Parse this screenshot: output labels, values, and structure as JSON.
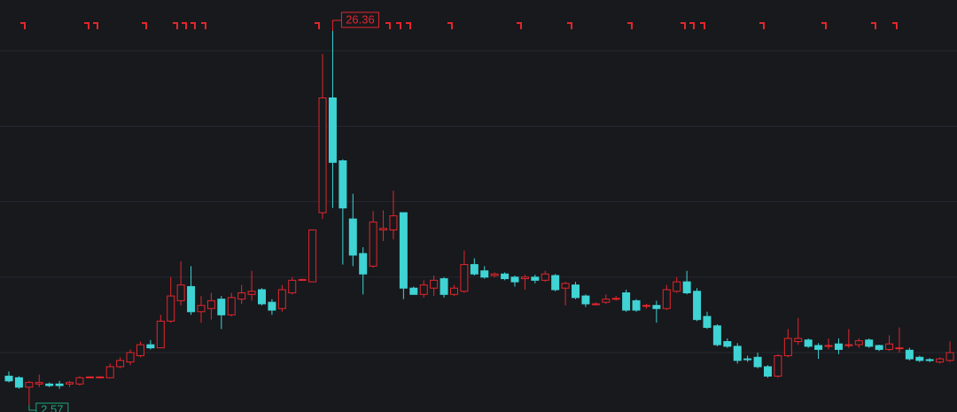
{
  "chart_data": {
    "type": "candlestick",
    "up_color": "#e3262c",
    "down_color": "#3fd3d4",
    "grid": true,
    "ylim": [
      2.12,
      28.33
    ],
    "ygrid": [
      5.9,
      10.7,
      15.5,
      20.3,
      25.1
    ],
    "annotations": {
      "high": 26.36,
      "low": 2.57
    },
    "open": [
      4.4,
      4.3,
      3.7,
      3.9,
      3.9,
      3.9,
      3.9,
      3.9,
      4.3,
      4.3,
      4.3,
      5.0,
      5.3,
      5.7,
      6.4,
      6.2,
      7.9,
      9.2,
      10.1,
      8.5,
      8.7,
      9.3,
      8.3,
      9.3,
      9.6,
      9.9,
      9.1,
      8.7,
      9.7,
      10.5,
      10.4,
      14.8,
      22.1,
      18.1,
      14.4,
      12.2,
      11.4,
      13.7,
      13.7,
      14.8,
      10.0,
      9.6,
      10.0,
      10.6,
      9.6,
      9.8,
      11.5,
      11.1,
      10.8,
      10.9,
      10.7,
      10.6,
      10.7,
      10.5,
      10.8,
      10.0,
      10.2,
      9.5,
      8.95,
      9.1,
      9.3,
      9.7,
      9.2,
      8.85,
      8.9,
      8.7,
      9.8,
      10.4,
      9.8,
      8.2,
      7.6,
      6.6,
      6.3,
      5.5,
      5.6,
      5.0,
      4.4,
      5.7,
      6.6,
      6.7,
      6.35,
      6.3,
      6.45,
      6.35,
      6.4,
      6.7,
      6.35,
      6.1,
      6.15,
      6.05,
      5.6,
      5.45,
      5.3,
      5.4
    ],
    "high": [
      4.7,
      4.4,
      4.1,
      4.5,
      4.0,
      4.1,
      4.1,
      4.4,
      4.4,
      4.4,
      5.2,
      5.6,
      6.1,
      6.6,
      6.7,
      8.3,
      10.7,
      11.7,
      11.4,
      9.5,
      9.7,
      9.5,
      9.7,
      10.2,
      11.1,
      10.0,
      9.3,
      10.2,
      10.7,
      10.6,
      13.7,
      24.9,
      26.36,
      18.2,
      16.0,
      12.6,
      14.9,
      14.95,
      16.2,
      14.8,
      10.1,
      10.5,
      10.8,
      10.7,
      10.2,
      12.4,
      11.9,
      11.4,
      11.0,
      11.0,
      10.8,
      10.86,
      10.86,
      11.1,
      10.9,
      10.4,
      10.4,
      9.6,
      9.1,
      9.6,
      9.5,
      9.9,
      9.3,
      9.0,
      9.2,
      10.2,
      10.7,
      11.1,
      10.0,
      8.5,
      7.7,
      6.8,
      6.5,
      5.7,
      5.9,
      5.1,
      5.8,
      7.4,
      8.1,
      6.8,
      6.5,
      6.8,
      6.8,
      7.4,
      6.8,
      6.8,
      6.4,
      7.0,
      7.5,
      6.2,
      5.7,
      5.55,
      5.6,
      6.6
    ],
    "low": [
      4.0,
      3.6,
      2.57,
      3.7,
      3.7,
      3.6,
      3.7,
      3.8,
      4.3,
      4.3,
      4.3,
      4.9,
      5.1,
      5.6,
      6.1,
      6.2,
      7.8,
      8.9,
      8.3,
      7.8,
      8.0,
      7.4,
      8.2,
      9.0,
      9.2,
      8.9,
      8.3,
      8.5,
      9.6,
      10.5,
      10.4,
      14.4,
      15.1,
      11.5,
      11.4,
      9.6,
      11.3,
      13.0,
      13.1,
      9.3,
      9.6,
      9.4,
      9.5,
      9.4,
      9.5,
      9.7,
      10.8,
      10.6,
      10.7,
      10.5,
      10.1,
      9.9,
      10.3,
      10.4,
      9.8,
      8.9,
      9.3,
      8.8,
      8.9,
      9.0,
      9.2,
      8.5,
      8.5,
      8.7,
      7.8,
      8.6,
      9.7,
      9.6,
      7.9,
      7.4,
      6.3,
      6.2,
      5.2,
      5.3,
      4.9,
      4.3,
      4.3,
      5.6,
      6.4,
      6.2,
      5.5,
      6.1,
      5.8,
      6.2,
      6.2,
      6.2,
      6.0,
      6.0,
      5.9,
      5.4,
      5.3,
      5.3,
      5.2,
      5.3
    ],
    "close": [
      4.1,
      3.7,
      4.0,
      4.0,
      3.8,
      3.8,
      4.0,
      4.3,
      4.35,
      4.35,
      5.0,
      5.4,
      5.9,
      6.4,
      6.2,
      7.9,
      9.5,
      10.2,
      8.5,
      8.9,
      9.2,
      8.3,
      9.4,
      9.7,
      9.8,
      9.0,
      8.6,
      9.9,
      10.5,
      10.55,
      13.7,
      22.1,
      18.0,
      15.1,
      12.1,
      10.9,
      14.2,
      13.8,
      14.6,
      10.0,
      9.6,
      10.2,
      10.5,
      9.6,
      10.0,
      11.5,
      10.9,
      10.7,
      10.9,
      10.6,
      10.4,
      10.7,
      10.5,
      10.9,
      9.9,
      10.3,
      9.4,
      9.0,
      9.0,
      9.3,
      9.35,
      8.6,
      8.6,
      8.9,
      8.7,
      9.9,
      10.4,
      9.7,
      8.0,
      7.5,
      6.4,
      6.3,
      5.4,
      5.45,
      5.0,
      4.4,
      5.7,
      6.8,
      6.8,
      6.3,
      6.1,
      6.35,
      6.1,
      6.4,
      6.65,
      6.3,
      6.1,
      6.45,
      6.2,
      5.5,
      5.4,
      5.4,
      5.5,
      5.9
    ]
  }
}
